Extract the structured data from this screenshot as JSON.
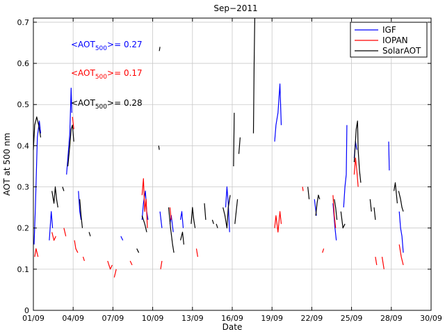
{
  "chart_data": {
    "type": "line",
    "title": "Sep−2011",
    "xlabel": "Date",
    "ylabel": "AOT at 500 nm",
    "xlim": [
      1,
      31
    ],
    "ylim": [
      0,
      0.71
    ],
    "x_ticks": [
      1,
      4,
      7,
      10,
      13,
      16,
      19,
      22,
      25,
      28,
      31
    ],
    "x_tick_labels": [
      "01/09",
      "04/09",
      "07/09",
      "10/09",
      "13/09",
      "16/09",
      "19/09",
      "22/09",
      "25/09",
      "28/09",
      "30/09"
    ],
    "y_ticks": [
      0,
      0.1,
      0.2,
      0.3,
      0.4,
      0.5,
      0.6,
      0.7
    ],
    "y_tick_labels": [
      "0",
      "0.1",
      "0.2",
      "0.3",
      "0.4",
      "0.5",
      "0.6",
      "0.7"
    ],
    "grid": true,
    "legend_position": "top-right",
    "colors": {
      "IGF": "#0000ff",
      "IOPAN": "#ff0000",
      "SolarAOT": "#000000"
    },
    "annotations": [
      {
        "base": "<AOT",
        "sub": "500",
        "rest": ">= 0.27",
        "color": "#0000ff"
      },
      {
        "base": "<AOT",
        "sub": "500",
        "rest": ">= 0.17",
        "color": "#ff0000"
      },
      {
        "base": "<AOT",
        "sub": "500",
        "rest": ">= 0.28",
        "color": "#000000"
      }
    ],
    "series": [
      {
        "name": "IGF",
        "segments": [
          [
            [
              1.05,
              0.16
            ],
            [
              1.15,
              0.25
            ],
            [
              1.3,
              0.42
            ],
            [
              1.45,
              0.46
            ],
            [
              1.55,
              0.43
            ]
          ],
          [
            [
              2.2,
              0.17
            ],
            [
              2.35,
              0.24
            ],
            [
              2.45,
              0.2
            ]
          ],
          [
            [
              3.5,
              0.33
            ],
            [
              3.6,
              0.37
            ],
            [
              3.75,
              0.43
            ],
            [
              3.85,
              0.54
            ],
            [
              3.9,
              0.48
            ]
          ],
          [
            [
              4.4,
              0.29
            ],
            [
              4.5,
              0.24
            ],
            [
              4.6,
              0.22
            ]
          ],
          [
            [
              7.6,
              0.18
            ],
            [
              7.75,
              0.17
            ]
          ],
          [
            [
              9.2,
              0.22
            ],
            [
              9.3,
              0.26
            ],
            [
              9.45,
              0.29
            ],
            [
              9.55,
              0.24
            ],
            [
              9.65,
              0.22
            ]
          ],
          [
            [
              10.55,
              0.24
            ],
            [
              10.7,
              0.2
            ]
          ],
          [
            [
              11.3,
              0.21
            ],
            [
              11.4,
              0.23
            ],
            [
              11.55,
              0.19
            ]
          ],
          [
            [
              12.1,
              0.22
            ],
            [
              12.2,
              0.24
            ],
            [
              12.3,
              0.2
            ]
          ],
          [
            [
              15.5,
              0.25
            ],
            [
              15.6,
              0.3
            ],
            [
              15.7,
              0.26
            ],
            [
              15.8,
              0.19
            ]
          ],
          [
            [
              19.2,
              0.41
            ],
            [
              19.3,
              0.45
            ],
            [
              19.45,
              0.48
            ],
            [
              19.6,
              0.55
            ],
            [
              19.7,
              0.45
            ]
          ],
          [
            [
              22.2,
              0.27
            ],
            [
              22.35,
              0.23
            ]
          ],
          [
            [
              23.6,
              0.26
            ],
            [
              23.75,
              0.2
            ],
            [
              23.85,
              0.17
            ]
          ],
          [
            [
              24.4,
              0.25
            ],
            [
              24.5,
              0.3
            ],
            [
              24.6,
              0.33
            ],
            [
              24.65,
              0.45
            ]
          ],
          [
            [
              25.2,
              0.37
            ],
            [
              25.3,
              0.41
            ],
            [
              25.4,
              0.39
            ]
          ],
          [
            [
              27.8,
              0.41
            ],
            [
              27.85,
              0.34
            ]
          ],
          [
            [
              28.6,
              0.24
            ],
            [
              28.7,
              0.2
            ],
            [
              28.8,
              0.18
            ],
            [
              28.9,
              0.14
            ]
          ]
        ]
      },
      {
        "name": "IOPAN",
        "segments": [
          [
            [
              1.1,
              0.13
            ],
            [
              1.2,
              0.15
            ],
            [
              1.35,
              0.13
            ]
          ],
          [
            [
              2.4,
              0.19
            ],
            [
              2.55,
              0.17
            ],
            [
              2.7,
              0.18
            ]
          ],
          [
            [
              3.3,
              0.2
            ],
            [
              3.45,
              0.18
            ]
          ],
          [
            [
              3.95,
              0.47
            ],
            [
              4.05,
              0.44
            ]
          ],
          [
            [
              4.1,
              0.17
            ],
            [
              4.2,
              0.15
            ],
            [
              4.35,
              0.14
            ]
          ],
          [
            [
              4.75,
              0.13
            ],
            [
              4.85,
              0.12
            ]
          ],
          [
            [
              6.6,
              0.12
            ],
            [
              6.8,
              0.1
            ],
            [
              6.95,
              0.11
            ]
          ],
          [
            [
              7.1,
              0.08
            ],
            [
              7.25,
              0.1
            ]
          ],
          [
            [
              8.3,
              0.12
            ],
            [
              8.45,
              0.11
            ]
          ],
          [
            [
              9.2,
              0.28
            ],
            [
              9.3,
              0.32
            ],
            [
              9.4,
              0.24
            ],
            [
              9.5,
              0.27
            ],
            [
              9.6,
              0.2
            ]
          ],
          [
            [
              10.6,
              0.1
            ],
            [
              10.7,
              0.12
            ]
          ],
          [
            [
              11.3,
              0.25
            ],
            [
              11.4,
              0.22
            ]
          ],
          [
            [
              13.3,
              0.15
            ],
            [
              13.4,
              0.13
            ]
          ],
          [
            [
              19.2,
              0.2
            ],
            [
              19.3,
              0.23
            ],
            [
              19.45,
              0.19
            ],
            [
              19.6,
              0.24
            ],
            [
              19.7,
              0.21
            ]
          ],
          [
            [
              21.3,
              0.3
            ],
            [
              21.35,
              0.29
            ]
          ],
          [
            [
              22.8,
              0.14
            ],
            [
              22.9,
              0.15
            ]
          ],
          [
            [
              23.6,
              0.28
            ],
            [
              23.7,
              0.23
            ],
            [
              23.8,
              0.2
            ]
          ],
          [
            [
              25.2,
              0.33
            ],
            [
              25.3,
              0.37
            ],
            [
              25.4,
              0.34
            ],
            [
              25.5,
              0.3
            ]
          ],
          [
            [
              26.8,
              0.13
            ],
            [
              26.9,
              0.11
            ]
          ],
          [
            [
              27.3,
              0.13
            ],
            [
              27.45,
              0.1
            ]
          ],
          [
            [
              28.6,
              0.16
            ],
            [
              28.75,
              0.13
            ],
            [
              28.9,
              0.11
            ]
          ]
        ]
      },
      {
        "name": "SolarAOT",
        "segments": [
          [
            [
              1.0,
              0.39
            ],
            [
              1.1,
              0.45
            ],
            [
              1.25,
              0.47
            ],
            [
              1.4,
              0.45
            ],
            [
              1.55,
              0.42
            ]
          ],
          [
            [
              2.4,
              0.29
            ],
            [
              2.55,
              0.26
            ],
            [
              2.65,
              0.3
            ],
            [
              2.75,
              0.27
            ],
            [
              2.85,
              0.25
            ]
          ],
          [
            [
              3.2,
              0.3
            ],
            [
              3.3,
              0.29
            ]
          ],
          [
            [
              3.6,
              0.35
            ],
            [
              3.75,
              0.4
            ],
            [
              3.85,
              0.44
            ],
            [
              3.95,
              0.45
            ],
            [
              4.05,
              0.41
            ]
          ],
          [
            [
              4.5,
              0.27
            ],
            [
              4.6,
              0.23
            ],
            [
              4.7,
              0.2
            ]
          ],
          [
            [
              5.2,
              0.19
            ],
            [
              5.3,
              0.18
            ]
          ],
          [
            [
              8.8,
              0.15
            ],
            [
              8.95,
              0.14
            ]
          ],
          [
            [
              9.2,
              0.23
            ],
            [
              9.4,
              0.21
            ],
            [
              9.55,
              0.19
            ]
          ],
          [
            [
              10.5,
              0.63
            ],
            [
              10.55,
              0.64
            ]
          ],
          [
            [
              10.45,
              0.4
            ],
            [
              10.5,
              0.39
            ]
          ],
          [
            [
              11.2,
              0.25
            ],
            [
              11.35,
              0.2
            ],
            [
              11.5,
              0.16
            ],
            [
              11.6,
              0.14
            ]
          ],
          [
            [
              12.1,
              0.17
            ],
            [
              12.25,
              0.19
            ],
            [
              12.35,
              0.16
            ]
          ],
          [
            [
              12.9,
              0.21
            ],
            [
              13.0,
              0.25
            ],
            [
              13.1,
              0.22
            ],
            [
              13.2,
              0.2
            ]
          ],
          [
            [
              13.9,
              0.26
            ],
            [
              14.0,
              0.22
            ]
          ],
          [
            [
              14.5,
              0.22
            ],
            [
              14.6,
              0.21
            ]
          ],
          [
            [
              14.8,
              0.21
            ],
            [
              14.9,
              0.2
            ]
          ],
          [
            [
              15.3,
              0.25
            ],
            [
              15.45,
              0.23
            ],
            [
              15.6,
              0.2
            ],
            [
              15.7,
              0.25
            ],
            [
              15.85,
              0.28
            ]
          ],
          [
            [
              16.1,
              0.35
            ],
            [
              16.15,
              0.48
            ]
          ],
          [
            [
              16.2,
              0.21
            ],
            [
              16.3,
              0.24
            ],
            [
              16.4,
              0.27
            ]
          ],
          [
            [
              16.5,
              0.38
            ],
            [
              16.6,
              0.42
            ]
          ],
          [
            [
              17.6,
              0.43
            ],
            [
              17.65,
              0.6
            ],
            [
              17.7,
              0.71
            ]
          ],
          [
            [
              21.7,
              0.3
            ],
            [
              21.8,
              0.27
            ]
          ],
          [
            [
              22.3,
              0.23
            ],
            [
              22.4,
              0.26
            ],
            [
              22.5,
              0.28
            ],
            [
              22.6,
              0.27
            ]
          ],
          [
            [
              23.7,
              0.27
            ],
            [
              23.8,
              0.25
            ],
            [
              23.9,
              0.22
            ]
          ],
          [
            [
              24.2,
              0.24
            ],
            [
              24.35,
              0.2
            ],
            [
              24.5,
              0.21
            ]
          ],
          [
            [
              25.2,
              0.36
            ],
            [
              25.35,
              0.44
            ],
            [
              25.45,
              0.46
            ],
            [
              25.5,
              0.39
            ],
            [
              25.6,
              0.34
            ],
            [
              25.7,
              0.31
            ]
          ],
          [
            [
              26.4,
              0.27
            ],
            [
              26.5,
              0.24
            ]
          ],
          [
            [
              26.7,
              0.25
            ],
            [
              26.8,
              0.22
            ]
          ],
          [
            [
              28.2,
              0.29
            ],
            [
              28.3,
              0.31
            ],
            [
              28.45,
              0.26
            ]
          ],
          [
            [
              28.55,
              0.29
            ],
            [
              28.7,
              0.27
            ],
            [
              28.8,
              0.25
            ],
            [
              28.9,
              0.24
            ]
          ]
        ]
      }
    ]
  }
}
